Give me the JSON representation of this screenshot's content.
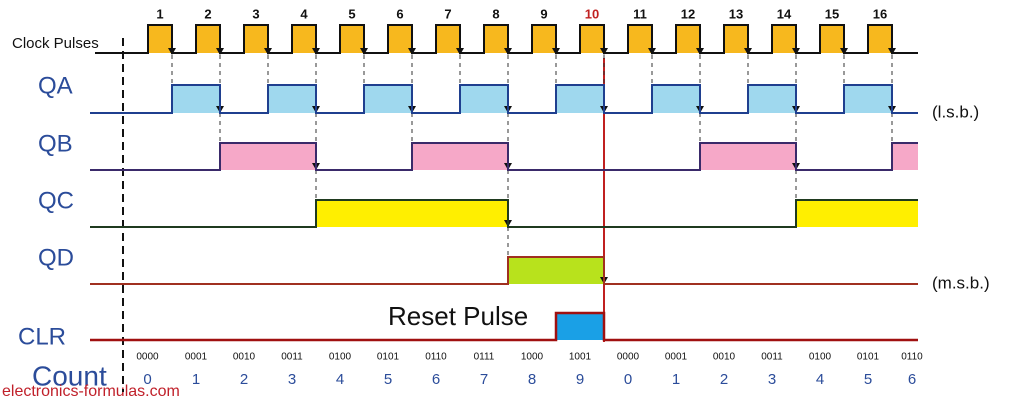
{
  "clock": {
    "label": "Clock Pulses",
    "pulses": [
      "1",
      "2",
      "3",
      "4",
      "5",
      "6",
      "7",
      "8",
      "9",
      "10",
      "11",
      "12",
      "13",
      "14",
      "15",
      "16"
    ]
  },
  "signals": [
    {
      "label": "QA",
      "note": "(l.s.b.)"
    },
    {
      "label": "QB"
    },
    {
      "label": "QC"
    },
    {
      "label": "QD",
      "note": "(m.s.b.)"
    },
    {
      "label": "CLR",
      "annotation": "Reset Pulse"
    }
  ],
  "count": {
    "label": "Count",
    "binary": [
      "0000",
      "0001",
      "0010",
      "0011",
      "0100",
      "0101",
      "0110",
      "0111",
      "1000",
      "1001",
      "0000",
      "0001",
      "0010",
      "0011",
      "0100",
      "0101",
      "0110"
    ],
    "decimal": [
      "0",
      "1",
      "2",
      "3",
      "4",
      "5",
      "6",
      "7",
      "8",
      "9",
      "0",
      "1",
      "2",
      "3",
      "4",
      "5",
      "6"
    ]
  },
  "footer": "electronics-formulas.com"
}
